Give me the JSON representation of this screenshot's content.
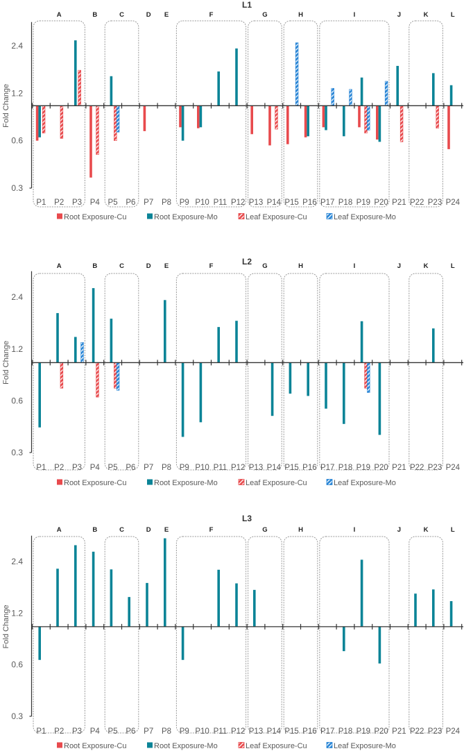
{
  "colors": {
    "root_cu": "#e84a4d",
    "root_mo": "#0b8497",
    "leaf_cu": "#e84a4d",
    "leaf_mo": "#2a86d6",
    "axis": "#333333",
    "box": "#9a9a9a"
  },
  "legend": [
    {
      "key": "root_cu",
      "label": "Root Exposure-Cu",
      "style": "solid"
    },
    {
      "key": "root_mo",
      "label": "Root Exposure-Mo",
      "style": "solid"
    },
    {
      "key": "leaf_cu",
      "label": "Leaf Exposure-Cu",
      "style": "hatched"
    },
    {
      "key": "leaf_mo",
      "label": "Leaf Exposure-Mo",
      "style": "hatched"
    }
  ],
  "chart_data": [
    {
      "type": "bar",
      "title": "L1",
      "ylabel": "Fold Change",
      "xlabel": "",
      "yscale": "log2",
      "baseline": 1,
      "ylim": [
        0.3,
        3.4
      ],
      "yticks": [
        "0.3",
        "0.6",
        "1.2",
        "2.4"
      ],
      "legend_position": "bottom",
      "categories": [
        "P1",
        "P2",
        "P3",
        "P4",
        "P5",
        "P6",
        "P7",
        "P8",
        "P9",
        "P10",
        "P11",
        "P12",
        "P13",
        "P14",
        "P15",
        "P16",
        "P17",
        "P18",
        "P19",
        "P20",
        "P21",
        "P22",
        "P23",
        "P24"
      ],
      "groups": [
        {
          "label": "A",
          "from": 0,
          "to": 2,
          "boxed": true
        },
        {
          "label": "B",
          "from": 3,
          "to": 3,
          "boxed": false
        },
        {
          "label": "C",
          "from": 4,
          "to": 5,
          "boxed": true
        },
        {
          "label": "D",
          "from": 6,
          "to": 6,
          "boxed": false
        },
        {
          "label": "E",
          "from": 7,
          "to": 7,
          "boxed": false
        },
        {
          "label": "F",
          "from": 8,
          "to": 11,
          "boxed": true
        },
        {
          "label": "G",
          "from": 12,
          "to": 13,
          "boxed": true
        },
        {
          "label": "H",
          "from": 14,
          "to": 15,
          "boxed": true
        },
        {
          "label": "I",
          "from": 16,
          "to": 19,
          "boxed": true
        },
        {
          "label": "J",
          "from": 20,
          "to": 20,
          "boxed": false
        },
        {
          "label": "K",
          "from": 21,
          "to": 22,
          "boxed": true
        },
        {
          "label": "L",
          "from": 23,
          "to": 23,
          "boxed": false
        }
      ],
      "series": [
        {
          "key": "root_cu",
          "name": "Root Exposure-Cu",
          "values": [
            0.6,
            null,
            null,
            0.35,
            null,
            null,
            0.69,
            null,
            0.73,
            0.72,
            null,
            null,
            0.66,
            0.56,
            0.57,
            0.63,
            0.73,
            null,
            0.73,
            0.61,
            null,
            null,
            null,
            0.53
          ]
        },
        {
          "key": "root_mo",
          "name": "Root Exposure-Mo",
          "values": [
            0.63,
            null,
            2.6,
            null,
            1.54,
            null,
            null,
            null,
            0.6,
            0.73,
            1.65,
            2.31,
            null,
            null,
            null,
            0.64,
            0.7,
            0.64,
            1.51,
            0.59,
            1.79,
            null,
            1.61,
            1.35
          ]
        },
        {
          "key": "leaf_cu",
          "name": "Leaf Exposure-Cu",
          "values": [
            0.67,
            0.62,
            1.68,
            0.49,
            0.6,
            null,
            null,
            null,
            null,
            null,
            null,
            null,
            null,
            0.71,
            null,
            null,
            null,
            null,
            0.67,
            null,
            0.59,
            null,
            0.72,
            null
          ]
        },
        {
          "key": "leaf_mo",
          "name": "Leaf Exposure-Mo",
          "values": [
            null,
            null,
            null,
            null,
            0.68,
            null,
            null,
            null,
            null,
            null,
            null,
            null,
            null,
            null,
            2.51,
            null,
            1.29,
            1.27,
            0.7,
            1.43,
            null,
            null,
            null,
            null
          ]
        }
      ]
    },
    {
      "type": "bar",
      "title": "L2",
      "ylabel": "Fold Change",
      "xlabel": "",
      "yscale": "log2",
      "baseline": 1,
      "ylim": [
        0.3,
        3.4
      ],
      "yticks": [
        "0.3",
        "0.6",
        "1.2",
        "2.4"
      ],
      "legend_position": "bottom",
      "categories": [
        "P1",
        "P2",
        "P3",
        "P4",
        "P5",
        "P6",
        "P7",
        "P8",
        "P9",
        "P10",
        "P11",
        "P12",
        "P13",
        "P14",
        "P15",
        "P16",
        "P17",
        "P18",
        "P19",
        "P20",
        "P21",
        "P22",
        "P23",
        "P24"
      ],
      "groups": [
        {
          "label": "A",
          "from": 0,
          "to": 2,
          "boxed": true
        },
        {
          "label": "B",
          "from": 3,
          "to": 3,
          "boxed": false
        },
        {
          "label": "C",
          "from": 4,
          "to": 5,
          "boxed": true
        },
        {
          "label": "D",
          "from": 6,
          "to": 6,
          "boxed": false
        },
        {
          "label": "E",
          "from": 7,
          "to": 7,
          "boxed": false
        },
        {
          "label": "F",
          "from": 8,
          "to": 11,
          "boxed": true
        },
        {
          "label": "G",
          "from": 12,
          "to": 13,
          "boxed": true
        },
        {
          "label": "H",
          "from": 14,
          "to": 15,
          "boxed": true
        },
        {
          "label": "I",
          "from": 16,
          "to": 19,
          "boxed": true
        },
        {
          "label": "J",
          "from": 20,
          "to": 20,
          "boxed": false
        },
        {
          "label": "K",
          "from": 21,
          "to": 22,
          "boxed": true
        },
        {
          "label": "L",
          "from": 23,
          "to": 23,
          "boxed": false
        }
      ],
      "series": [
        {
          "key": "root_cu",
          "name": "Root Exposure-Cu",
          "values": [
            null,
            null,
            null,
            null,
            null,
            null,
            null,
            null,
            null,
            null,
            null,
            null,
            null,
            null,
            null,
            null,
            null,
            null,
            null,
            null,
            null,
            null,
            null,
            null
          ]
        },
        {
          "key": "root_mo",
          "name": "Root Exposure-Mo",
          "values": [
            0.42,
            1.94,
            1.41,
            2.71,
            1.8,
            null,
            null,
            2.31,
            0.37,
            0.45,
            1.61,
            1.75,
            null,
            0.49,
            0.66,
            0.64,
            0.54,
            0.44,
            1.74,
            0.38,
            null,
            null,
            1.58,
            null
          ]
        },
        {
          "key": "leaf_cu",
          "name": "Leaf Exposure-Cu",
          "values": [
            null,
            0.71,
            null,
            0.63,
            0.71,
            null,
            null,
            null,
            null,
            null,
            null,
            null,
            null,
            null,
            null,
            null,
            null,
            null,
            0.71,
            null,
            null,
            null,
            null,
            null
          ]
        },
        {
          "key": "leaf_mo",
          "name": "Leaf Exposure-Mo",
          "values": [
            null,
            null,
            1.31,
            null,
            0.69,
            null,
            null,
            null,
            null,
            null,
            null,
            null,
            null,
            null,
            null,
            null,
            null,
            null,
            0.67,
            null,
            null,
            null,
            null,
            null
          ]
        }
      ]
    },
    {
      "type": "bar",
      "title": "L3",
      "ylabel": "Fold Change",
      "xlabel": "",
      "yscale": "log2",
      "baseline": 1,
      "ylim": [
        0.3,
        3.4
      ],
      "yticks": [
        "0.3",
        "0.6",
        "1.2",
        "2.4"
      ],
      "legend_position": "bottom",
      "categories": [
        "P1",
        "P2",
        "P3",
        "P4",
        "P5",
        "P6",
        "P7",
        "P8",
        "P9",
        "P10",
        "P11",
        "P12",
        "P13",
        "P14",
        "P15",
        "P16",
        "P17",
        "P18",
        "P19",
        "P20",
        "P21",
        "P22",
        "P23",
        "P24"
      ],
      "groups": [
        {
          "label": "A",
          "from": 0,
          "to": 2,
          "boxed": true
        },
        {
          "label": "B",
          "from": 3,
          "to": 3,
          "boxed": false
        },
        {
          "label": "C",
          "from": 4,
          "to": 5,
          "boxed": true
        },
        {
          "label": "D",
          "from": 6,
          "to": 6,
          "boxed": false
        },
        {
          "label": "E",
          "from": 7,
          "to": 7,
          "boxed": false
        },
        {
          "label": "F",
          "from": 8,
          "to": 11,
          "boxed": true
        },
        {
          "label": "G",
          "from": 12,
          "to": 13,
          "boxed": true
        },
        {
          "label": "H",
          "from": 14,
          "to": 15,
          "boxed": true
        },
        {
          "label": "I",
          "from": 16,
          "to": 19,
          "boxed": true
        },
        {
          "label": "J",
          "from": 20,
          "to": 20,
          "boxed": false
        },
        {
          "label": "K",
          "from": 21,
          "to": 22,
          "boxed": true
        },
        {
          "label": "L",
          "from": 23,
          "to": 23,
          "boxed": false
        }
      ],
      "series": [
        {
          "key": "root_cu",
          "name": "Root Exposure-Cu",
          "values": [
            null,
            null,
            null,
            null,
            null,
            null,
            null,
            null,
            null,
            null,
            null,
            null,
            null,
            null,
            null,
            null,
            null,
            null,
            null,
            null,
            null,
            null,
            null,
            null
          ]
        },
        {
          "key": "root_mo",
          "name": "Root Exposure-Mo",
          "values": [
            0.64,
            2.18,
            2.99,
            2.74,
            2.16,
            1.49,
            1.8,
            3.28,
            0.64,
            null,
            2.15,
            1.79,
            1.64,
            null,
            null,
            null,
            null,
            0.72,
            2.46,
            0.61,
            null,
            1.56,
            1.65,
            1.41
          ]
        },
        {
          "key": "leaf_cu",
          "name": "Leaf Exposure-Cu",
          "values": [
            null,
            null,
            null,
            null,
            null,
            null,
            null,
            null,
            null,
            null,
            null,
            null,
            null,
            null,
            null,
            null,
            null,
            null,
            null,
            null,
            null,
            null,
            null,
            null
          ]
        },
        {
          "key": "leaf_mo",
          "name": "Leaf Exposure-Mo",
          "values": [
            null,
            null,
            null,
            null,
            null,
            null,
            null,
            null,
            null,
            null,
            null,
            null,
            null,
            null,
            null,
            null,
            null,
            null,
            null,
            null,
            null,
            null,
            null,
            null
          ]
        }
      ]
    }
  ]
}
